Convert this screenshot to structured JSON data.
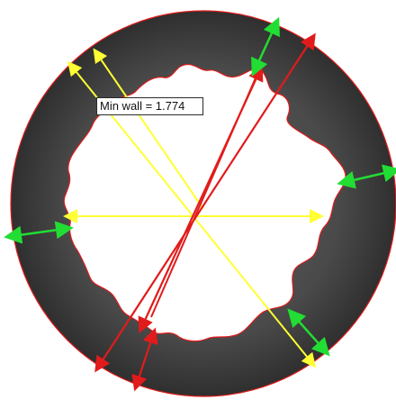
{
  "measurement": {
    "min_wall_label": "Min wall = 1.774"
  },
  "colors": {
    "background": "#ffffff",
    "outer_ring": "#4a4a4a",
    "inner_void": "#ffffff",
    "contour_line": "#e11b1b",
    "diameter_line": "#ffff33",
    "cross_line": "#e11b1b",
    "wall_arrow": "#22dd33"
  },
  "icons": {
    "measurement_type": "min-wall-thickness"
  }
}
